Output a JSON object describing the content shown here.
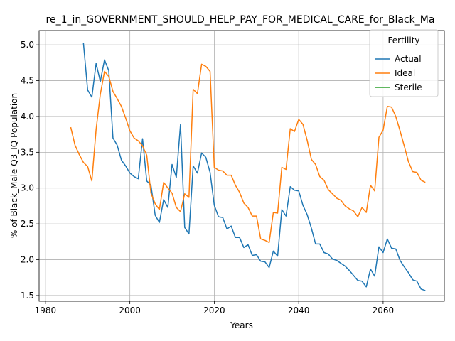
{
  "chart_data": {
    "type": "line",
    "title": "re_1_in_GOVERNMENT_SHOULD_HELP_PAY_FOR_MEDICAL_CARE_for_Black_Ma",
    "xlabel": "Years",
    "ylabel": "% of Black_Male Q3_IQ Population",
    "xlim": [
      1978.5,
      2074.5
    ],
    "ylim": [
      1.42,
      5.2
    ],
    "xticks": [
      1980,
      2000,
      2020,
      2040,
      2060
    ],
    "yticks": [
      1.5,
      2.0,
      2.5,
      3.0,
      3.5,
      4.0,
      4.5,
      5.0
    ],
    "grid": true,
    "legend": {
      "title": "Fertility",
      "placement": "top-right"
    },
    "series": [
      {
        "name": "Actual",
        "color": "#1f77b4",
        "x": [
          1989,
          1990,
          1991,
          1992,
          1993,
          1994,
          1995,
          1996,
          1997,
          1998,
          1999,
          2000,
          2001,
          2002,
          2003,
          2004,
          2005,
          2006,
          2007,
          2008,
          2009,
          2010,
          2011,
          2012,
          2013,
          2014,
          2015,
          2016,
          2017,
          2018,
          2019,
          2020,
          2021,
          2022,
          2023,
          2024,
          2025,
          2026,
          2027,
          2028,
          2029,
          2030,
          2031,
          2032,
          2033,
          2034,
          2035,
          2036,
          2037,
          2038,
          2039,
          2040,
          2041,
          2042,
          2043,
          2044,
          2045,
          2046,
          2047,
          2048,
          2049,
          2050,
          2051,
          2052,
          2053,
          2054,
          2055,
          2056,
          2057,
          2058,
          2059,
          2060,
          2061,
          2062,
          2063,
          2064,
          2065,
          2066,
          2067,
          2068,
          2069,
          2070
        ],
        "y": [
          5.03,
          4.37,
          4.27,
          4.74,
          4.49,
          4.79,
          4.64,
          3.7,
          3.6,
          3.39,
          3.31,
          3.21,
          3.16,
          3.13,
          3.69,
          3.1,
          3.04,
          2.62,
          2.52,
          2.84,
          2.73,
          3.33,
          3.15,
          3.89,
          2.45,
          2.36,
          3.31,
          3.21,
          3.49,
          3.43,
          3.22,
          2.76,
          2.6,
          2.59,
          2.43,
          2.47,
          2.31,
          2.31,
          2.17,
          2.21,
          2.06,
          2.07,
          1.98,
          1.97,
          1.89,
          2.12,
          2.05,
          2.7,
          2.61,
          3.02,
          2.97,
          2.96,
          2.76,
          2.63,
          2.44,
          2.22,
          2.22,
          2.1,
          2.08,
          2.01,
          1.99,
          1.95,
          1.91,
          1.85,
          1.78,
          1.71,
          1.7,
          1.62,
          1.87,
          1.77,
          2.18,
          2.1,
          2.29,
          2.16,
          2.15,
          1.99,
          1.9,
          1.82,
          1.72,
          1.7,
          1.59,
          1.57
        ]
      },
      {
        "name": "Ideal",
        "color": "#ff7f0e",
        "x": [
          1986,
          1987,
          1988,
          1989,
          1990,
          1991,
          1992,
          1993,
          1994,
          1995,
          1996,
          1997,
          1998,
          1999,
          2000,
          2001,
          2002,
          2003,
          2004,
          2005,
          2006,
          2007,
          2008,
          2009,
          2010,
          2011,
          2012,
          2013,
          2014,
          2015,
          2016,
          2017,
          2018,
          2019,
          2020,
          2021,
          2022,
          2023,
          2024,
          2025,
          2026,
          2027,
          2028,
          2029,
          2030,
          2031,
          2032,
          2033,
          2034,
          2035,
          2036,
          2037,
          2038,
          2039,
          2040,
          2041,
          2042,
          2043,
          2044,
          2045,
          2046,
          2047,
          2048,
          2049,
          2050,
          2051,
          2052,
          2053,
          2054,
          2055,
          2056,
          2057,
          2058,
          2059,
          2060,
          2061,
          2062,
          2063,
          2064,
          2065,
          2066,
          2067,
          2068,
          2069,
          2070
        ],
        "y": [
          3.85,
          3.6,
          3.47,
          3.36,
          3.3,
          3.1,
          3.82,
          4.31,
          4.63,
          4.56,
          4.35,
          4.25,
          4.14,
          3.98,
          3.8,
          3.7,
          3.66,
          3.59,
          3.46,
          2.93,
          2.78,
          2.7,
          3.08,
          3.0,
          2.93,
          2.73,
          2.67,
          2.92,
          2.87,
          4.38,
          4.32,
          4.73,
          4.7,
          4.63,
          3.29,
          3.25,
          3.24,
          3.18,
          3.18,
          3.04,
          2.94,
          2.79,
          2.73,
          2.61,
          2.61,
          2.29,
          2.27,
          2.24,
          2.66,
          2.65,
          3.29,
          3.26,
          3.83,
          3.79,
          3.96,
          3.89,
          3.67,
          3.4,
          3.33,
          3.16,
          3.11,
          2.98,
          2.92,
          2.86,
          2.83,
          2.75,
          2.71,
          2.68,
          2.6,
          2.73,
          2.66,
          3.04,
          2.96,
          3.71,
          3.81,
          4.14,
          4.13,
          4.0,
          3.8,
          3.59,
          3.37,
          3.23,
          3.22,
          3.11,
          3.08
        ]
      },
      {
        "name": "Sterile",
        "color": "#2ca02c",
        "x": [],
        "y": []
      }
    ]
  }
}
